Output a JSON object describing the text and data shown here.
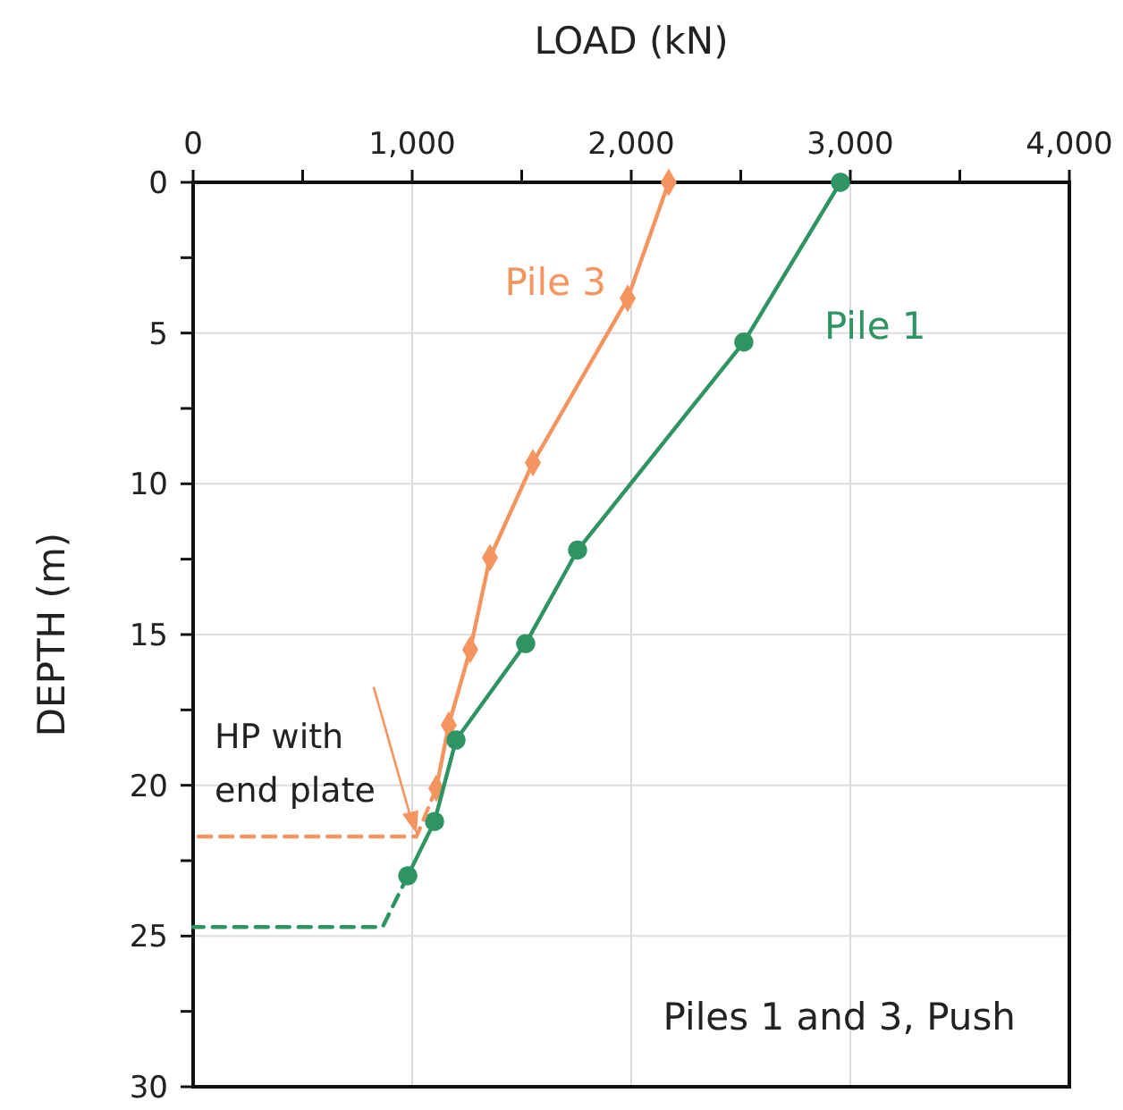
{
  "chart_data": {
    "type": "line",
    "xlabel": "LOAD  (kN)",
    "ylabel": "DEPTH  (m)",
    "xlim": [
      0,
      4000
    ],
    "xticks": [
      0,
      {
        "value": 500,
        "label": null
      },
      {
        "value": 1000,
        "label": "1,000"
      },
      {
        "value": 1500,
        "label": null
      },
      {
        "value": 2000,
        "label": "2,000"
      },
      {
        "value": 2500,
        "label": null
      },
      {
        "value": 3000,
        "label": "3,000"
      },
      {
        "value": 3500,
        "label": null
      },
      {
        "value": 4000,
        "label": "4,000"
      }
    ],
    "ylim": [
      30,
      0
    ],
    "yticks": [
      0,
      {
        "value": 2.5,
        "label": null
      },
      5,
      {
        "value": 7.5,
        "label": null
      },
      10,
      {
        "value": 12.5,
        "label": null
      },
      15,
      {
        "value": 17.5,
        "label": null
      },
      20,
      {
        "value": 22.5,
        "label": null
      },
      25,
      {
        "value": 27.5,
        "label": null
      },
      30
    ],
    "grid": true,
    "series": [
      {
        "name": "Pile 3",
        "color": "#f4955f",
        "marker": "diamond",
        "line_style": "solid",
        "x": [
          2171,
          1984,
          1551,
          1355,
          1265,
          1167,
          1110
        ],
        "values": [
          0,
          3.85,
          9.3,
          12.45,
          15.5,
          18.0,
          20.1
        ]
      },
      {
        "name": "Pile 1",
        "color": "#2e9463",
        "marker": "circle",
        "line_style": "solid",
        "x": [
          2955,
          2514,
          1755,
          1518,
          1200,
          1102,
          980
        ],
        "values": [
          0,
          5.3,
          12.2,
          15.3,
          18.5,
          21.2,
          23.0
        ]
      },
      {
        "color": "#f4955f",
        "marker": "none",
        "line_style": "dashed",
        "x": [
          1110,
          1020,
          0
        ],
        "values": [
          20.1,
          21.7,
          21.7
        ]
      },
      {
        "color": "#2e9463",
        "marker": "none",
        "line_style": "dashed",
        "x": [
          980,
          865,
          0
        ],
        "values": [
          23.0,
          24.7,
          24.7
        ]
      }
    ],
    "annotations": [
      {
        "text": "HP with end plate",
        "x": 1020,
        "y": 21.6
      },
      "Piles 1 and 3, Push"
    ]
  }
}
